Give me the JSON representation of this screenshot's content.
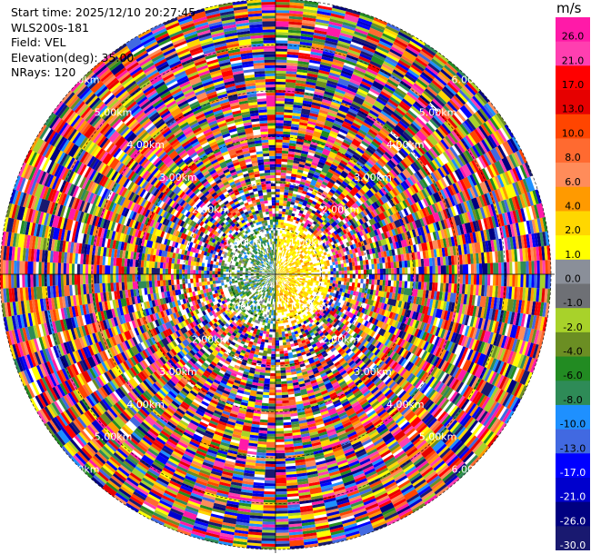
{
  "info": {
    "start_time": "Start time: 2025/12/10 20:27:45",
    "device": "WLS200s-181",
    "field": "Field: VEL",
    "elevation": "Elevation(deg): 35.00",
    "nrays": "NRays: 120"
  },
  "chart_data": {
    "type": "heatmap",
    "projection": "polar",
    "field": "VEL",
    "n_rays": 120,
    "range_rings_km": [
      1.0,
      2.0,
      3.0,
      4.0,
      5.0,
      6.0
    ],
    "range_ring_labels": [
      "1.00km",
      "2.00km",
      "3.00km",
      "4.00km",
      "5.00km",
      "6.00km"
    ],
    "colorbar": {
      "unit": "m/s",
      "ticks": [
        "26.0",
        "21.0",
        "17.0",
        "13.0",
        "10.0",
        "8.0",
        "6.0",
        "4.0",
        "2.0",
        "1.0",
        "0.0",
        "-1.0",
        "-2.0",
        "-4.0",
        "-6.0",
        "-8.0",
        "-10.0",
        "-13.0",
        "-17.0",
        "-21.0",
        "-26.0",
        "-30.0"
      ],
      "colors": [
        "#ff1aa8",
        "#ff3fb0",
        "#ff0000",
        "#e60000",
        "#ff4500",
        "#ff6a30",
        "#ff8c5a",
        "#ff9a00",
        "#ffd700",
        "#ffff00",
        "#8a8f99",
        "#6e7075",
        "#a8d22a",
        "#6b8e23",
        "#228b22",
        "#2e8b57",
        "#1e90ff",
        "#4169e1",
        "#0000ff",
        "#0000cd",
        "#000080",
        "#191970"
      ]
    }
  }
}
